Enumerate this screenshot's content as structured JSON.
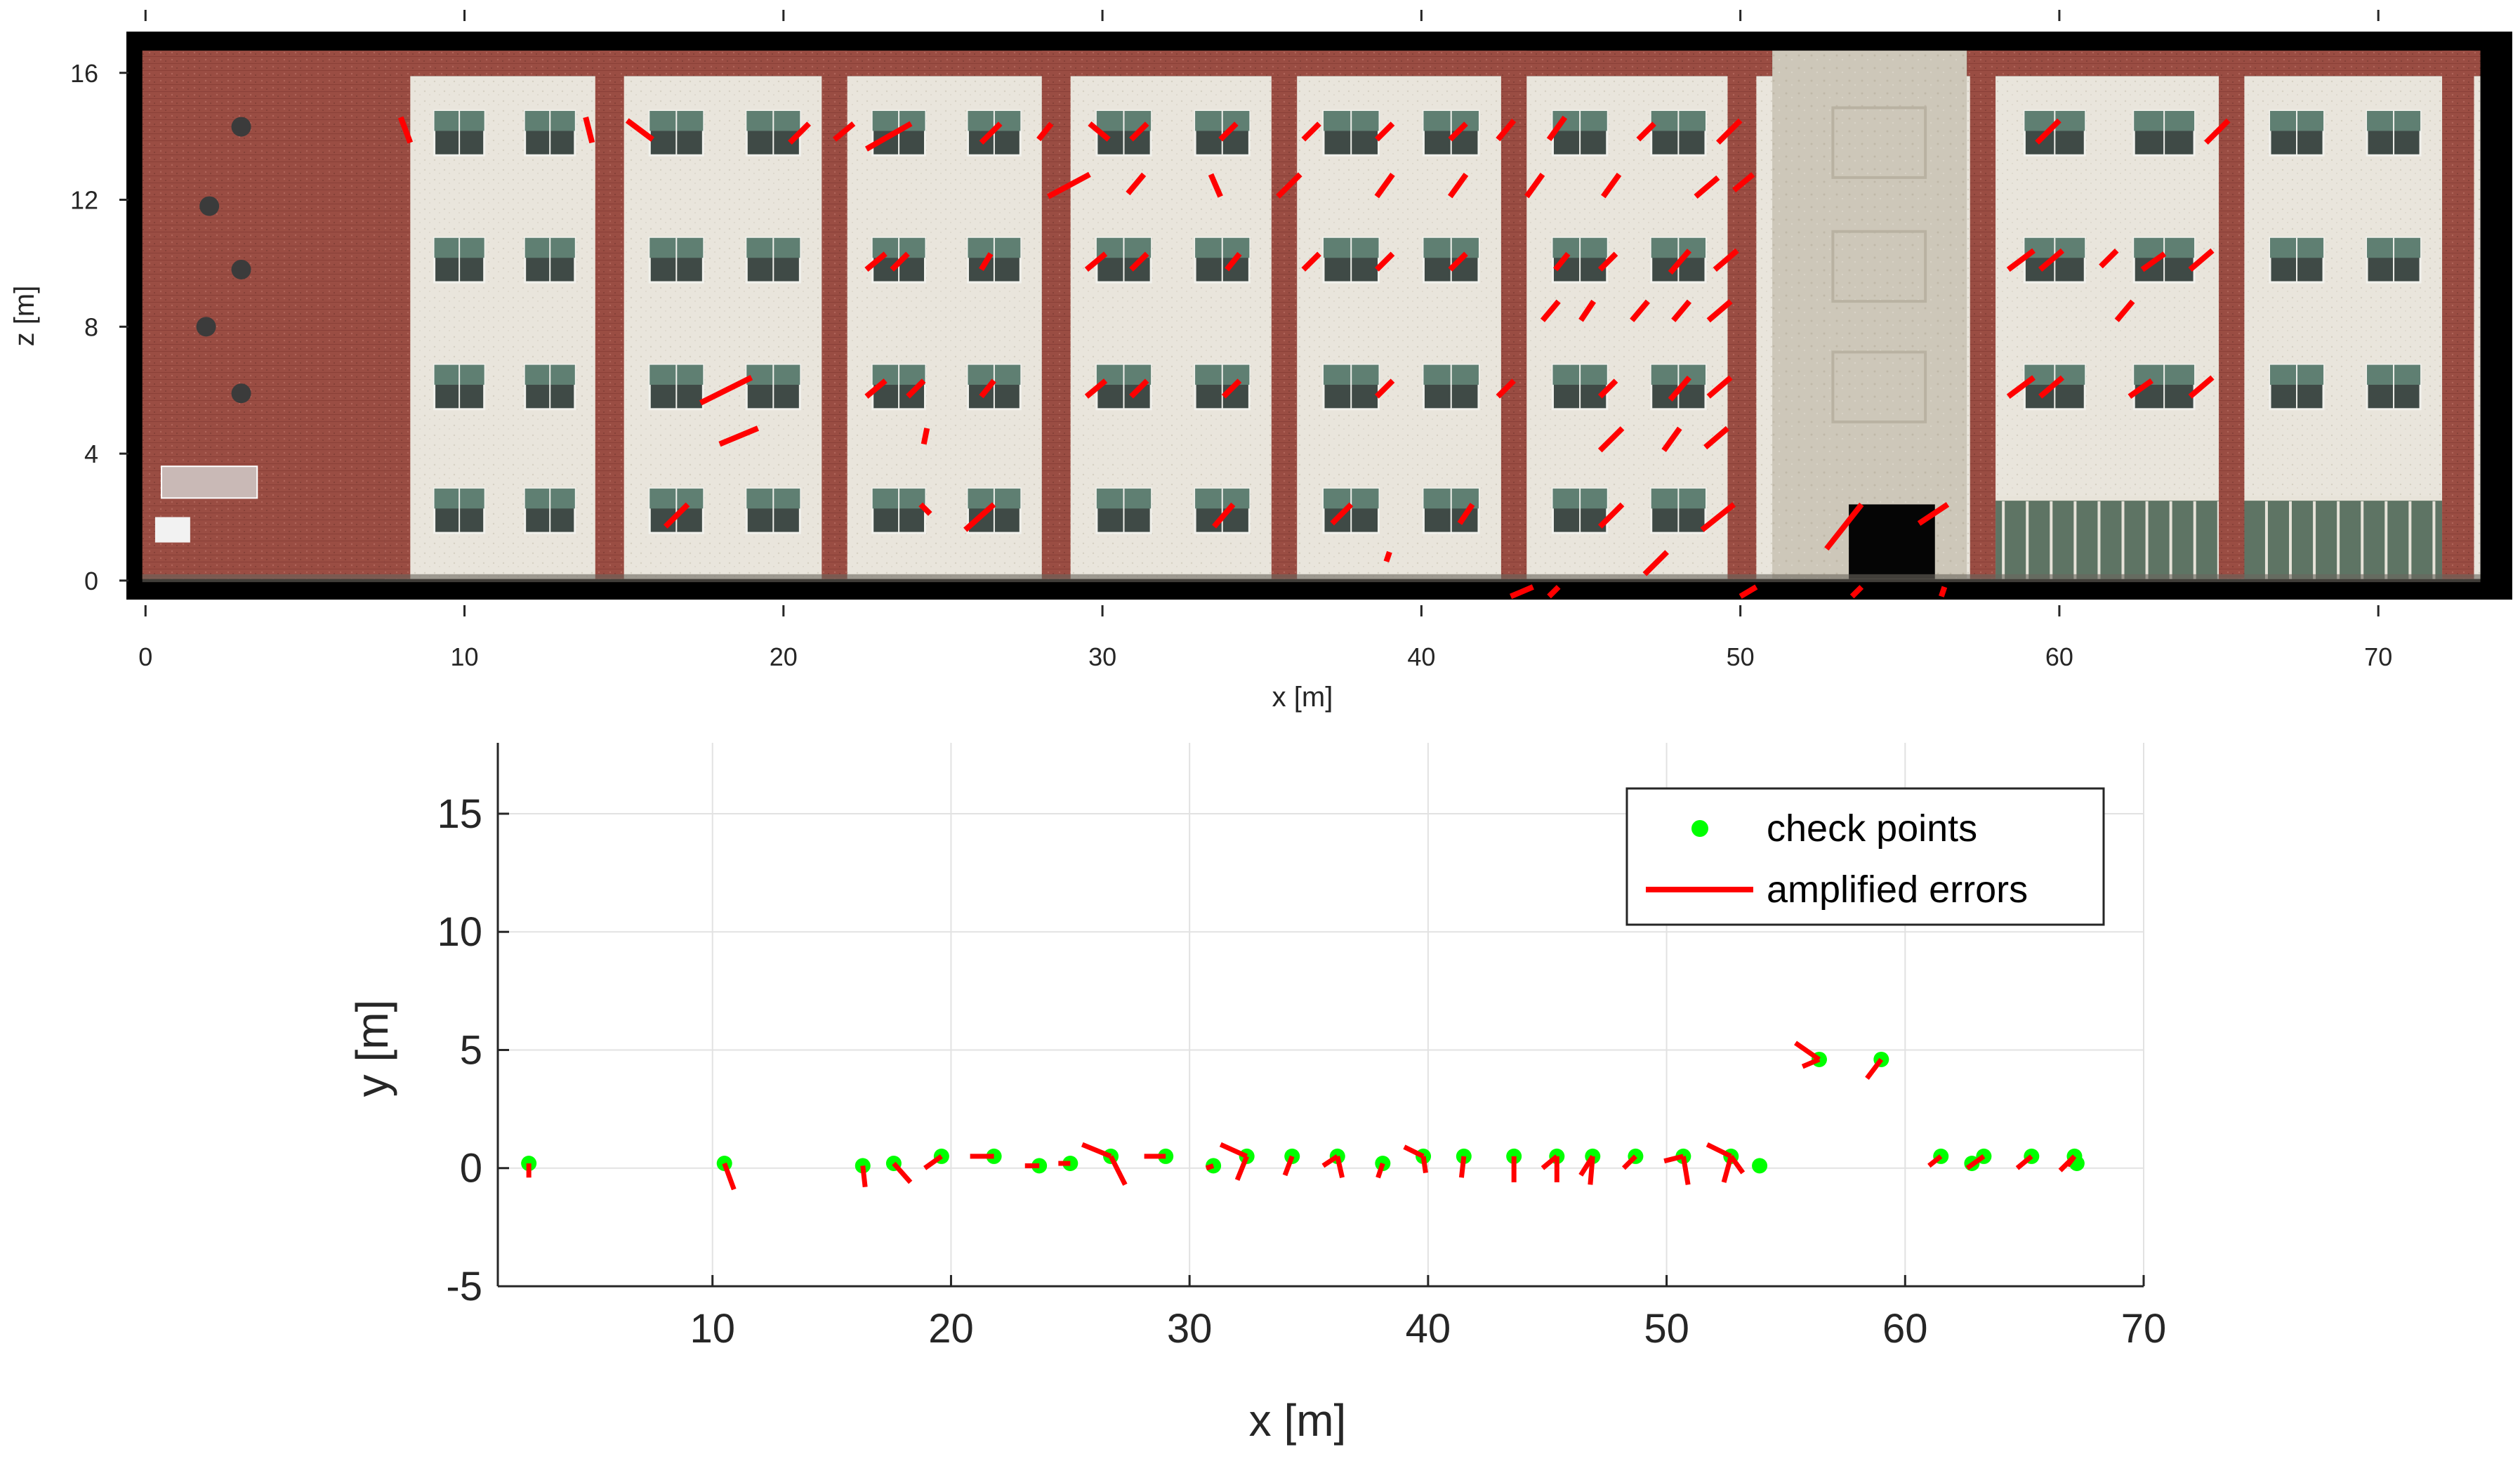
{
  "colors": {
    "error_vector": "#ff0000",
    "check_point": "#00ff00",
    "brick": "#9a4d43",
    "plaster": "#e9e5dc",
    "window_glass": "#5f7f72",
    "stair_tower": "#cdc7b9",
    "frame": "#000000",
    "grid": "#e2e2e2",
    "axis": "#262626"
  },
  "chart_data": [
    {
      "type": "image-overlay",
      "description_in_image": "orthophoto of building facade with amplified error vectors",
      "xlabel": "x [m]",
      "ylabel": "z [m]",
      "xlim": [
        -0.6,
        74.2
      ],
      "ylim": [
        -0.6,
        17.3
      ],
      "xticks": [
        0,
        10,
        20,
        30,
        40,
        50,
        60,
        70
      ],
      "yticks": [
        0,
        4,
        8,
        12,
        16
      ],
      "grid": false,
      "building": {
        "brick_piers_x": [
          [
            7.5,
            8.3
          ],
          [
            14.1,
            15.0
          ],
          [
            21.2,
            22.0
          ],
          [
            28.1,
            29.0
          ],
          [
            35.3,
            36.1
          ],
          [
            42.5,
            43.3
          ],
          [
            49.6,
            50.5
          ],
          [
            57.2,
            58.0
          ],
          [
            65.0,
            65.8
          ],
          [
            72.0,
            73.0
          ]
        ],
        "left_wing_x": [
          -0.1,
          7.5
        ],
        "stair_tower_x": [
          51.0,
          57.1
        ],
        "right_wing_x": [
          57.1,
          73.2
        ],
        "roof_parapet_z": [
          15.9,
          16.7
        ],
        "floor_levels_z": [
          1.8,
          5.8,
          9.8,
          13.8
        ]
      },
      "vectors": [
        [
          8.0,
          14.6,
          8.3,
          13.8
        ],
        [
          13.8,
          14.6,
          14.0,
          13.8
        ],
        [
          15.1,
          14.5,
          15.9,
          13.9
        ],
        [
          20.2,
          13.8,
          20.8,
          14.4
        ],
        [
          21.6,
          13.9,
          22.2,
          14.4
        ],
        [
          22.6,
          13.6,
          24.0,
          14.4
        ],
        [
          26.2,
          13.8,
          26.8,
          14.4
        ],
        [
          28.0,
          13.9,
          28.4,
          14.4
        ],
        [
          29.6,
          14.4,
          30.2,
          13.9
        ],
        [
          30.9,
          13.9,
          31.4,
          14.4
        ],
        [
          33.7,
          13.9,
          34.2,
          14.4
        ],
        [
          36.3,
          13.9,
          36.8,
          14.4
        ],
        [
          38.6,
          13.9,
          39.1,
          14.4
        ],
        [
          40.9,
          13.9,
          41.4,
          14.4
        ],
        [
          42.4,
          13.9,
          42.9,
          14.5
        ],
        [
          44.0,
          13.9,
          44.5,
          14.6
        ],
        [
          46.8,
          13.9,
          47.3,
          14.4
        ],
        [
          49.3,
          13.8,
          50.0,
          14.5
        ],
        [
          59.3,
          13.8,
          60.0,
          14.5
        ],
        [
          64.6,
          13.8,
          65.3,
          14.5
        ],
        [
          28.3,
          12.1,
          29.6,
          12.8
        ],
        [
          30.8,
          12.2,
          31.3,
          12.8
        ],
        [
          33.4,
          12.8,
          33.7,
          12.1
        ],
        [
          35.5,
          12.1,
          36.2,
          12.8
        ],
        [
          38.6,
          12.1,
          39.1,
          12.8
        ],
        [
          40.9,
          12.1,
          41.4,
          12.8
        ],
        [
          43.3,
          12.1,
          43.8,
          12.8
        ],
        [
          45.7,
          12.1,
          46.2,
          12.8
        ],
        [
          48.6,
          12.1,
          49.3,
          12.7
        ],
        [
          49.8,
          12.3,
          50.4,
          12.8
        ],
        [
          22.6,
          9.8,
          23.2,
          10.3
        ],
        [
          23.4,
          9.8,
          23.9,
          10.3
        ],
        [
          26.2,
          9.8,
          26.5,
          10.3
        ],
        [
          29.5,
          9.8,
          30.1,
          10.3
        ],
        [
          30.9,
          9.8,
          31.4,
          10.3
        ],
        [
          33.9,
          9.8,
          34.3,
          10.3
        ],
        [
          36.3,
          9.8,
          36.8,
          10.3
        ],
        [
          38.6,
          9.8,
          39.1,
          10.3
        ],
        [
          40.9,
          9.8,
          41.4,
          10.3
        ],
        [
          44.2,
          9.8,
          44.6,
          10.3
        ],
        [
          45.6,
          9.8,
          46.1,
          10.3
        ],
        [
          47.8,
          9.7,
          48.4,
          10.4
        ],
        [
          49.2,
          9.8,
          49.9,
          10.4
        ],
        [
          58.4,
          9.8,
          59.2,
          10.4
        ],
        [
          59.4,
          9.8,
          60.1,
          10.4
        ],
        [
          61.3,
          9.9,
          61.8,
          10.4
        ],
        [
          62.6,
          9.8,
          63.3,
          10.3
        ],
        [
          64.1,
          9.8,
          64.8,
          10.4
        ],
        [
          43.8,
          8.2,
          44.3,
          8.8
        ],
        [
          45.0,
          8.2,
          45.4,
          8.8
        ],
        [
          46.6,
          8.2,
          47.1,
          8.8
        ],
        [
          47.9,
          8.2,
          48.4,
          8.8
        ],
        [
          49.0,
          8.2,
          49.7,
          8.8
        ],
        [
          61.8,
          8.2,
          62.3,
          8.8
        ],
        [
          17.4,
          5.6,
          19.0,
          6.4
        ],
        [
          22.6,
          5.8,
          23.2,
          6.3
        ],
        [
          23.9,
          5.8,
          24.4,
          6.3
        ],
        [
          26.2,
          5.8,
          26.6,
          6.3
        ],
        [
          29.5,
          5.8,
          30.1,
          6.3
        ],
        [
          30.9,
          5.8,
          31.4,
          6.3
        ],
        [
          33.8,
          5.8,
          34.3,
          6.3
        ],
        [
          38.6,
          5.8,
          39.1,
          6.3
        ],
        [
          42.4,
          5.8,
          42.9,
          6.3
        ],
        [
          45.6,
          5.8,
          46.1,
          6.3
        ],
        [
          47.8,
          5.7,
          48.4,
          6.4
        ],
        [
          49.0,
          5.8,
          49.7,
          6.4
        ],
        [
          58.4,
          5.8,
          59.2,
          6.4
        ],
        [
          59.4,
          5.8,
          60.1,
          6.4
        ],
        [
          62.2,
          5.8,
          62.9,
          6.3
        ],
        [
          64.1,
          5.8,
          64.8,
          6.4
        ],
        [
          18.0,
          4.3,
          19.2,
          4.8
        ],
        [
          24.4,
          4.3,
          24.5,
          4.8
        ],
        [
          45.6,
          4.1,
          46.3,
          4.8
        ],
        [
          47.6,
          4.1,
          48.1,
          4.8
        ],
        [
          48.9,
          4.2,
          49.6,
          4.8
        ],
        [
          16.3,
          1.7,
          17.0,
          2.4
        ],
        [
          24.3,
          2.4,
          24.6,
          2.1
        ],
        [
          25.7,
          1.6,
          26.6,
          2.4
        ],
        [
          33.5,
          1.7,
          34.1,
          2.4
        ],
        [
          37.2,
          1.8,
          37.8,
          2.4
        ],
        [
          41.2,
          1.8,
          41.6,
          2.4
        ],
        [
          45.6,
          1.7,
          46.3,
          2.4
        ],
        [
          48.8,
          1.6,
          49.8,
          2.4
        ],
        [
          52.7,
          1.0,
          53.8,
          2.4
        ],
        [
          55.6,
          1.8,
          56.5,
          2.4
        ],
        [
          38.9,
          0.6,
          39.0,
          0.9
        ],
        [
          47.0,
          0.2,
          47.7,
          0.9
        ],
        [
          42.8,
          -0.5,
          43.5,
          -0.2
        ],
        [
          44.0,
          -0.5,
          44.3,
          -0.2
        ],
        [
          50.0,
          -0.5,
          50.5,
          -0.2
        ],
        [
          53.5,
          -0.5,
          53.8,
          -0.2
        ],
        [
          56.3,
          -0.5,
          56.4,
          -0.2
        ]
      ]
    },
    {
      "type": "scatter",
      "xlabel": "x [m]",
      "ylabel": "y [m]",
      "xlim": [
        1,
        70
      ],
      "ylim": [
        -5,
        18
      ],
      "xticks": [
        10,
        20,
        30,
        40,
        50,
        60,
        70
      ],
      "yticks": [
        -5,
        0,
        5,
        10,
        15
      ],
      "grid": true,
      "legend_position": "top-right",
      "legend": [
        "check points",
        "amplified errors"
      ],
      "points": [
        [
          2.3,
          0.2
        ],
        [
          10.5,
          0.2
        ],
        [
          16.3,
          0.1
        ],
        [
          17.6,
          0.2
        ],
        [
          19.6,
          0.5
        ],
        [
          21.8,
          0.5
        ],
        [
          23.7,
          0.1
        ],
        [
          25.0,
          0.2
        ],
        [
          26.7,
          0.5
        ],
        [
          29.0,
          0.5
        ],
        [
          31.0,
          0.1
        ],
        [
          32.4,
          0.5
        ],
        [
          34.3,
          0.5
        ],
        [
          36.2,
          0.5
        ],
        [
          38.1,
          0.2
        ],
        [
          39.8,
          0.5
        ],
        [
          41.5,
          0.5
        ],
        [
          43.6,
          0.5
        ],
        [
          45.4,
          0.5
        ],
        [
          46.9,
          0.5
        ],
        [
          48.7,
          0.5
        ],
        [
          50.7,
          0.5
        ],
        [
          52.7,
          0.5
        ],
        [
          53.9,
          0.1
        ],
        [
          56.4,
          4.6
        ],
        [
          59.0,
          4.6
        ],
        [
          61.5,
          0.5
        ],
        [
          63.3,
          0.5
        ],
        [
          65.3,
          0.5
        ],
        [
          67.1,
          0.5
        ],
        [
          62.8,
          0.2
        ],
        [
          67.2,
          0.2
        ]
      ],
      "error_vectors": [
        [
          2.3,
          0.2,
          2.3,
          -0.4
        ],
        [
          10.5,
          0.2,
          10.9,
          -0.9
        ],
        [
          16.3,
          0.1,
          16.4,
          -0.8
        ],
        [
          17.6,
          0.2,
          18.3,
          -0.6
        ],
        [
          19.6,
          0.5,
          18.9,
          0.0
        ],
        [
          21.8,
          0.5,
          20.8,
          0.5
        ],
        [
          23.7,
          0.1,
          23.1,
          0.1
        ],
        [
          25.0,
          0.2,
          24.5,
          0.2
        ],
        [
          26.7,
          0.5,
          25.5,
          1.0
        ],
        [
          26.7,
          0.5,
          27.3,
          -0.7
        ],
        [
          29.0,
          0.5,
          28.1,
          0.5
        ],
        [
          31.0,
          0.1,
          30.7,
          0.0
        ],
        [
          32.4,
          0.5,
          31.3,
          1.0
        ],
        [
          32.4,
          0.5,
          32.0,
          -0.5
        ],
        [
          34.3,
          0.5,
          34.0,
          -0.3
        ],
        [
          36.2,
          0.5,
          35.6,
          0.1
        ],
        [
          36.2,
          0.5,
          36.4,
          -0.4
        ],
        [
          38.1,
          0.2,
          37.9,
          -0.4
        ],
        [
          39.8,
          0.5,
          39.0,
          0.9
        ],
        [
          39.8,
          0.5,
          39.9,
          -0.2
        ],
        [
          41.5,
          0.5,
          41.4,
          -0.4
        ],
        [
          43.6,
          0.5,
          43.6,
          -0.6
        ],
        [
          45.4,
          0.5,
          44.8,
          0.0
        ],
        [
          45.4,
          0.5,
          45.4,
          -0.6
        ],
        [
          46.9,
          0.5,
          46.4,
          -0.3
        ],
        [
          46.9,
          0.5,
          46.8,
          -0.7
        ],
        [
          48.7,
          0.5,
          48.2,
          0.0
        ],
        [
          50.7,
          0.5,
          49.9,
          0.3
        ],
        [
          50.7,
          0.5,
          50.9,
          -0.7
        ],
        [
          52.7,
          0.5,
          51.7,
          1.0
        ],
        [
          52.7,
          0.5,
          52.4,
          -0.6
        ],
        [
          52.7,
          0.5,
          53.2,
          -0.2
        ],
        [
          56.4,
          4.6,
          55.4,
          5.3
        ],
        [
          56.4,
          4.6,
          55.7,
          4.3
        ],
        [
          59.0,
          4.6,
          58.4,
          3.8
        ],
        [
          61.5,
          0.5,
          61.0,
          0.1
        ],
        [
          63.3,
          0.5,
          62.6,
          0.0
        ],
        [
          65.3,
          0.5,
          64.7,
          0.0
        ],
        [
          67.1,
          0.5,
          66.5,
          -0.1
        ],
        [
          67.1,
          0.5,
          66.8,
          0.1
        ]
      ]
    }
  ]
}
